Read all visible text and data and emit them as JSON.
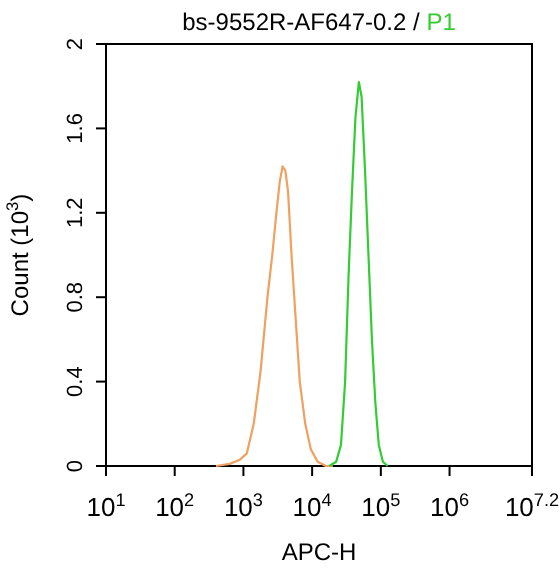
{
  "chart_data": {
    "type": "line",
    "title": "bs-9552R-AF647-0.2 /",
    "xlabel": "APC-H",
    "ylabel": "Count (10$^{3}$)",
    "log": "x",
    "grid": false,
    "legend": false,
    "marker": "none",
    "line_style": "solid",
    "xlim": [
      10,
      15848932
    ],
    "xticks": [
      {
        "value": 10,
        "label": "10$^{1}$"
      },
      {
        "value": 100,
        "label": "10$^{2}$"
      },
      {
        "value": 1000,
        "label": "10$^{3}$"
      },
      {
        "value": 10000,
        "label": "10$^{4}$"
      },
      {
        "value": 100000,
        "label": "10$^{5}$"
      },
      {
        "value": 1000000,
        "label": "10$^{6}$"
      },
      {
        "value": 15848932,
        "label": "10$^{7.2}$"
      }
    ],
    "ylim": [
      0,
      2
    ],
    "yticks": [
      0,
      0.4,
      0.8,
      1.2,
      1.6,
      2
    ],
    "series": [
      {
        "color": "#f0a060",
        "x": [
          398,
          631,
          891,
          1122,
          1413,
          1778,
          2239,
          2630,
          3020,
          3388,
          3715,
          4074,
          4467,
          5012,
          5754,
          6607,
          7943,
          9550,
          12023,
          15849,
          19953
        ],
        "values": [
          0,
          0.01,
          0.03,
          0.06,
          0.2,
          0.45,
          0.8,
          1.0,
          1.2,
          1.35,
          1.42,
          1.4,
          1.3,
          1.0,
          0.7,
          0.4,
          0.2,
          0.08,
          0.02,
          0,
          0
        ]
      },
      {
        "name": "P1",
        "color": "#33cc33",
        "x": [
          17783,
          22387,
          26303,
          30200,
          33884,
          38019,
          42658,
          47863,
          52481,
          58884,
          66069,
          74131,
          83176,
          93325,
          107152,
          125893
        ],
        "values": [
          0,
          0.02,
          0.1,
          0.4,
          0.9,
          1.3,
          1.65,
          1.82,
          1.75,
          1.4,
          1.0,
          0.6,
          0.3,
          0.1,
          0.02,
          0
        ]
      }
    ]
  }
}
